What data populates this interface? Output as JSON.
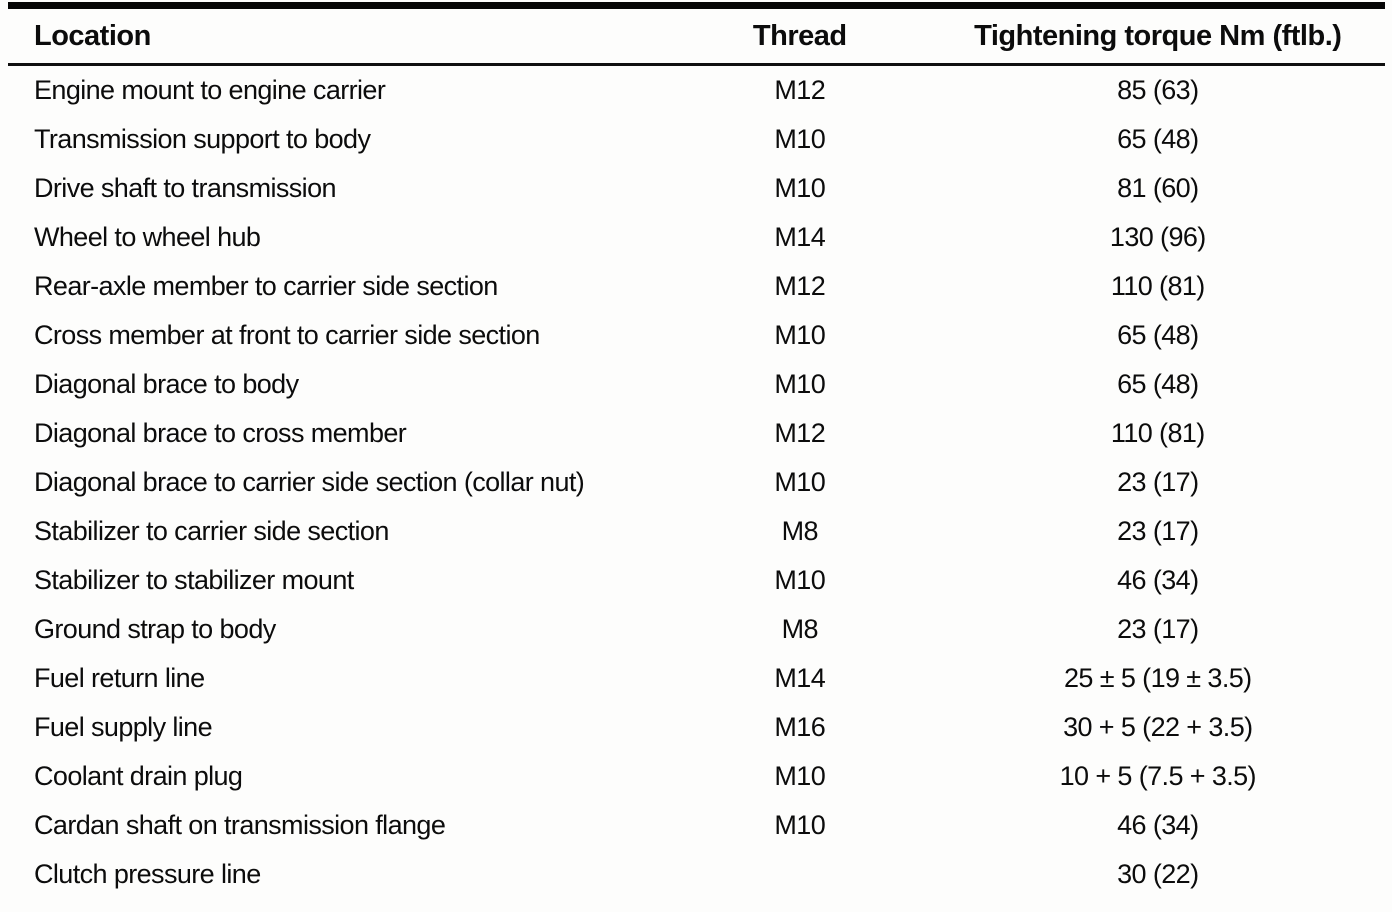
{
  "document": {
    "type": "torque-specification-table",
    "colors": {
      "ink": "#0c0c0c",
      "paper": "#fdfdfc"
    }
  },
  "table": {
    "columns": {
      "location": "Location",
      "thread": "Thread",
      "torque": "Tightening torque Nm (ftlb.)"
    },
    "rows": [
      {
        "location": "Engine mount to engine carrier",
        "thread": "M12",
        "torque": "85 (63)"
      },
      {
        "location": "Transmission support to body",
        "thread": "M10",
        "torque": "65 (48)"
      },
      {
        "location": "Drive shaft to transmission",
        "thread": "M10",
        "torque": "81 (60)"
      },
      {
        "location": "Wheel to wheel hub",
        "thread": "M14",
        "torque": "130 (96)"
      },
      {
        "location": "Rear-axle member to carrier side section",
        "thread": "M12",
        "torque": "110 (81)"
      },
      {
        "location": "Cross member at front to carrier side section",
        "thread": "M10",
        "torque": "65 (48)"
      },
      {
        "location": "Diagonal brace to body",
        "thread": "M10",
        "torque": "65 (48)"
      },
      {
        "location": "Diagonal brace to cross member",
        "thread": "M12",
        "torque": "110 (81)"
      },
      {
        "location": "Diagonal brace to carrier side section (collar nut)",
        "thread": "M10",
        "torque": "23 (17)"
      },
      {
        "location": "Stabilizer to carrier side section",
        "thread": "M8",
        "torque": "23 (17)"
      },
      {
        "location": "Stabilizer to stabilizer mount",
        "thread": "M10",
        "torque": "46 (34)"
      },
      {
        "location": "Ground strap to body",
        "thread": "M8",
        "torque": "23 (17)"
      },
      {
        "location": "Fuel return line",
        "thread": "M14",
        "torque": "25 ± 5 (19 ± 3.5)"
      },
      {
        "location": "Fuel supply line",
        "thread": "M16",
        "torque": "30 + 5 (22 + 3.5)"
      },
      {
        "location": "Coolant drain plug",
        "thread": "M10",
        "torque": "10 + 5 (7.5 + 3.5)"
      },
      {
        "location": "Cardan shaft on transmission flange",
        "thread": "M10",
        "torque": "46 (34)"
      },
      {
        "location": "Clutch pressure line",
        "thread": "",
        "torque": "30 (22)"
      }
    ]
  }
}
